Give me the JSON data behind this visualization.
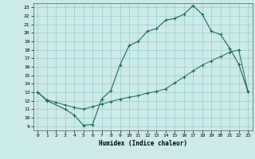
{
  "xlabel": "Humidex (Indice chaleur)",
  "bg_color": "#cceaea",
  "grid_color": "#99cccc",
  "line_color": "#1a6b5a",
  "xlim": [
    -0.5,
    23.5
  ],
  "ylim": [
    8.5,
    23.5
  ],
  "xticks": [
    0,
    1,
    2,
    3,
    4,
    5,
    6,
    7,
    8,
    9,
    10,
    11,
    12,
    13,
    14,
    15,
    16,
    17,
    18,
    19,
    20,
    21,
    22,
    23
  ],
  "yticks": [
    9,
    10,
    11,
    12,
    13,
    14,
    15,
    16,
    17,
    18,
    19,
    20,
    21,
    22,
    23
  ],
  "curve1_x": [
    0,
    1,
    3,
    4,
    5,
    6,
    7,
    8,
    9,
    10,
    11,
    12,
    13,
    14,
    15,
    16,
    17,
    18,
    19,
    20,
    21,
    22,
    23
  ],
  "curve1_y": [
    13,
    12,
    11,
    10.3,
    9.1,
    9.2,
    12.2,
    13.2,
    16.2,
    18.5,
    19.0,
    20.2,
    20.5,
    21.5,
    21.7,
    22.2,
    23.2,
    22.2,
    20.2,
    19.8,
    18.2,
    16.3,
    13.1
  ],
  "curve2_x": [
    0,
    1,
    2,
    3,
    4,
    5,
    6,
    7,
    8,
    9,
    10,
    11,
    12,
    13,
    14,
    15,
    16,
    17,
    18,
    19,
    20,
    21,
    22,
    23
  ],
  "curve2_y": [
    13,
    12.1,
    11.8,
    11.5,
    11.2,
    11.0,
    11.3,
    11.6,
    11.9,
    12.2,
    12.4,
    12.6,
    12.9,
    13.1,
    13.4,
    14.1,
    14.8,
    15.5,
    16.2,
    16.7,
    17.2,
    17.7,
    18.0,
    13.1
  ]
}
